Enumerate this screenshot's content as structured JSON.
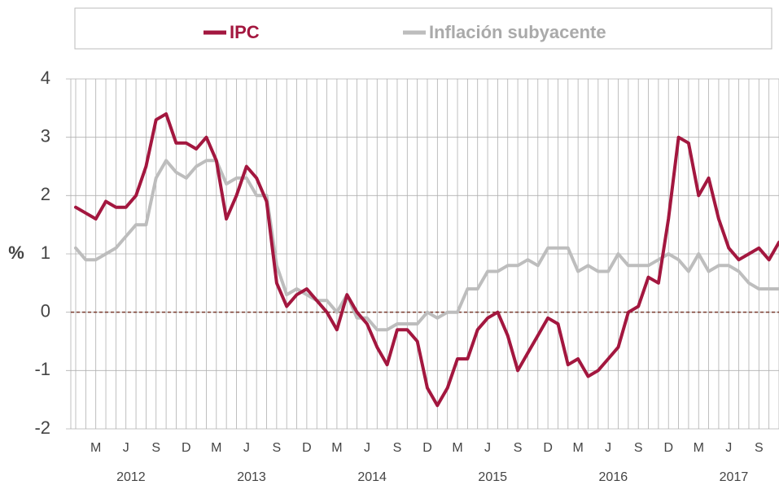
{
  "chart_data": {
    "type": "line",
    "y_label": "%",
    "categories": [
      null,
      null,
      "M",
      null,
      null,
      "J",
      null,
      null,
      "S",
      null,
      null,
      "D",
      null,
      null,
      "M",
      null,
      null,
      "J",
      null,
      null,
      "S",
      null,
      null,
      "D",
      null,
      null,
      "M",
      null,
      null,
      "J",
      null,
      null,
      "S",
      null,
      null,
      "D",
      null,
      null,
      "M",
      null,
      null,
      "J",
      null,
      null,
      "S",
      null,
      null,
      "D",
      null,
      null,
      "M",
      null,
      null,
      "J",
      null,
      null,
      "S",
      null,
      null,
      "D",
      null,
      null,
      "M",
      null,
      null,
      "J",
      null,
      null,
      "S",
      null,
      null
    ],
    "years": [
      "2012",
      "2013",
      "2014",
      "2015",
      "2016",
      "2017"
    ],
    "series": [
      {
        "name": "IPC",
        "color": "#a3173f",
        "values": [
          1.8,
          1.7,
          1.6,
          1.9,
          1.8,
          1.8,
          2.0,
          2.5,
          3.3,
          3.4,
          2.9,
          2.9,
          2.8,
          3.0,
          2.6,
          1.6,
          2.0,
          2.5,
          2.3,
          1.9,
          0.5,
          0.1,
          0.3,
          0.4,
          0.2,
          0.0,
          -0.3,
          0.3,
          0.0,
          -0.2,
          -0.6,
          -0.9,
          -0.3,
          -0.3,
          -0.5,
          -1.3,
          -1.6,
          -1.3,
          -0.8,
          -0.8,
          -0.3,
          -0.1,
          0.0,
          -0.4,
          -1.0,
          -0.7,
          -0.4,
          -0.1,
          -0.2,
          -0.9,
          -0.8,
          -1.1,
          -1.0,
          -0.8,
          -0.6,
          0.0,
          0.1,
          0.6,
          0.5,
          1.6,
          3.0,
          2.9,
          2.0,
          2.3,
          1.6,
          1.1,
          0.9,
          1.0,
          1.1,
          0.9,
          1.2
        ]
      },
      {
        "name": "Inflación subyacente",
        "color": "#bdbdbd",
        "values": [
          1.1,
          0.9,
          0.9,
          1.0,
          1.1,
          1.3,
          1.5,
          1.5,
          2.3,
          2.6,
          2.4,
          2.3,
          2.5,
          2.6,
          2.6,
          2.2,
          2.3,
          2.3,
          2.0,
          2.0,
          0.8,
          0.3,
          0.4,
          0.3,
          0.2,
          0.2,
          0.0,
          0.3,
          -0.1,
          -0.1,
          -0.3,
          -0.3,
          -0.2,
          -0.2,
          -0.2,
          0.0,
          -0.1,
          0.0,
          0.0,
          0.4,
          0.4,
          0.7,
          0.7,
          0.8,
          0.8,
          0.9,
          0.8,
          1.1,
          1.1,
          1.1,
          0.7,
          0.8,
          0.7,
          0.7,
          1.0,
          0.8,
          0.8,
          0.8,
          0.9,
          1.0,
          0.9,
          0.7,
          1.0,
          0.7,
          0.8,
          0.8,
          0.7,
          0.5,
          0.4,
          0.4,
          0.4
        ]
      }
    ],
    "ylim": [
      -2,
      4
    ],
    "yticks": [
      4,
      3,
      2,
      1,
      0,
      -1,
      -2
    ],
    "grid": true
  }
}
